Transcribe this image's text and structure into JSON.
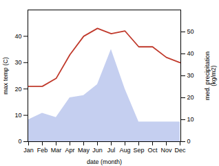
{
  "chart_data": {
    "type": "line",
    "xlabel": "date (month)",
    "ylabel": "max temp (C)",
    "y2label": "med. precipitation\n(kg/m2)",
    "categories": [
      "Jan",
      "Feb",
      "Mar",
      "Apr",
      "May",
      "Jun",
      "Jul",
      "Aug",
      "Sep",
      "Oct",
      "Nov",
      "Dec"
    ],
    "series": [
      {
        "type": "area",
        "axis": "y2",
        "color": "#c5cff0",
        "values": [
          10,
          13,
          11,
          20,
          21,
          26,
          42,
          24,
          9,
          9,
          9,
          9
        ]
      },
      {
        "type": "line",
        "color": "#c0392b",
        "values": [
          21,
          21,
          24,
          33,
          40,
          43,
          41,
          42,
          36,
          36,
          32,
          30
        ]
      }
    ],
    "ylim": [
      0,
      50
    ],
    "yticks": [
      0,
      10,
      20,
      30,
      40
    ],
    "y2lim": [
      0,
      60
    ],
    "y2ticks": [
      0,
      10,
      20,
      30,
      40,
      50
    ],
    "grid": false
  }
}
